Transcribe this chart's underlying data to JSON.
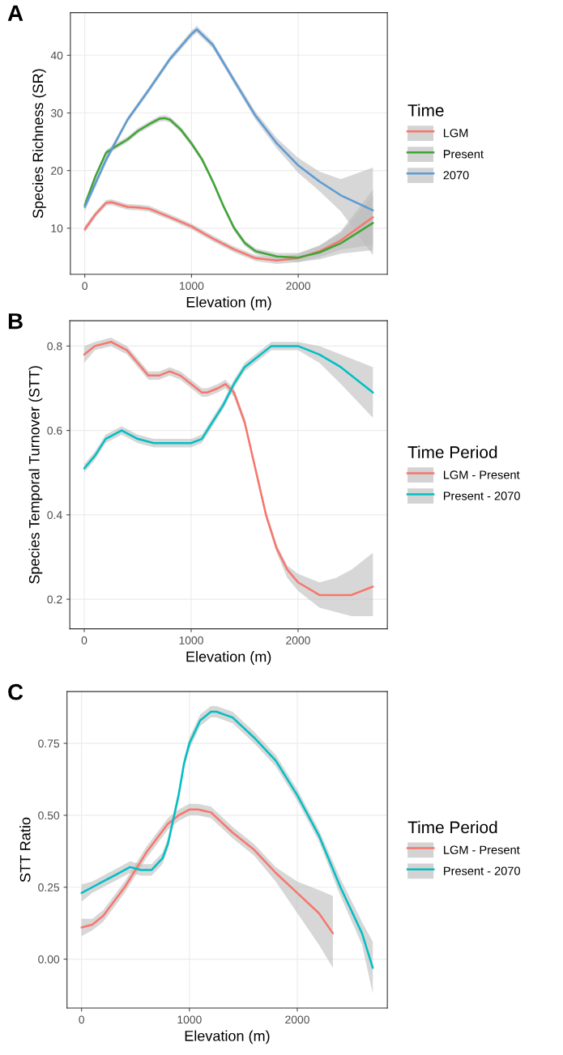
{
  "chart_data": [
    {
      "type": "line",
      "title": "A",
      "xlabel": "Elevation (m)",
      "ylabel": "Species Richness (SR)",
      "legend_title": "Time",
      "legend": "right",
      "grid": true,
      "xlim": [
        -135,
        2835
      ],
      "ylim": [
        2.0,
        47.4
      ],
      "xticks": [
        0,
        1000,
        2000
      ],
      "yticks": [
        10,
        20,
        30,
        40
      ],
      "series": [
        {
          "name": "LGM",
          "color": "#f8766d",
          "x": [
            0,
            100,
            200,
            250,
            400,
            500,
            600,
            800,
            1000,
            1200,
            1400,
            1600,
            1800,
            2000,
            2200,
            2400,
            2700
          ],
          "values": [
            9.8,
            12.4,
            14.4,
            14.5,
            13.7,
            13.6,
            13.4,
            11.9,
            10.3,
            8.2,
            6.3,
            4.8,
            4.4,
            4.8,
            6.0,
            7.9,
            11.9
          ],
          "lower": [
            9.2,
            11.9,
            13.9,
            14.0,
            13.2,
            13.1,
            12.9,
            11.4,
            9.8,
            7.7,
            5.8,
            4.3,
            3.8,
            4.1,
            5.0,
            6.3,
            7.1
          ],
          "upper": [
            10.4,
            12.9,
            14.9,
            15.0,
            14.2,
            14.1,
            13.9,
            12.4,
            10.8,
            8.7,
            6.8,
            5.3,
            5.0,
            5.5,
            7.0,
            9.5,
            16.7
          ]
        },
        {
          "name": "Present",
          "color": "#3fa535",
          "x": [
            0,
            100,
            200,
            300,
            400,
            500,
            600,
            700,
            750,
            800,
            900,
            1000,
            1100,
            1200,
            1300,
            1400,
            1500,
            1600,
            1800,
            2000,
            2200,
            2400,
            2700
          ],
          "values": [
            14.0,
            19.0,
            23.1,
            24.3,
            25.4,
            26.9,
            28.0,
            29.0,
            29.1,
            28.8,
            27.1,
            24.7,
            21.9,
            18.1,
            13.8,
            10.0,
            7.4,
            6.0,
            5.1,
            4.9,
            5.8,
            7.4,
            10.9
          ],
          "lower": [
            13.2,
            18.5,
            22.6,
            23.8,
            24.9,
            26.4,
            27.5,
            28.5,
            28.6,
            28.3,
            26.6,
            24.2,
            21.4,
            17.6,
            13.3,
            9.5,
            6.9,
            5.5,
            4.5,
            4.1,
            4.6,
            5.6,
            6.2
          ],
          "upper": [
            14.8,
            19.5,
            23.6,
            24.8,
            25.9,
            27.4,
            28.5,
            29.5,
            29.6,
            29.3,
            27.6,
            25.2,
            22.4,
            18.6,
            14.3,
            10.5,
            7.9,
            6.5,
            5.7,
            5.7,
            7.0,
            9.2,
            15.6
          ]
        },
        {
          "name": "2070",
          "color": "#5b9bd5",
          "x": [
            0,
            200,
            400,
            600,
            800,
            1000,
            1050,
            1200,
            1400,
            1600,
            1800,
            2000,
            2200,
            2400,
            2700
          ],
          "values": [
            13.7,
            21.9,
            28.8,
            34.0,
            39.4,
            43.7,
            44.5,
            41.8,
            35.6,
            29.5,
            24.7,
            20.9,
            18.1,
            15.7,
            13.1
          ],
          "lower": [
            12.9,
            21.3,
            28.3,
            33.5,
            38.9,
            43.1,
            43.9,
            41.2,
            35.0,
            28.8,
            23.8,
            19.6,
            16.4,
            12.9,
            5.3
          ],
          "upper": [
            14.5,
            22.5,
            29.3,
            34.5,
            39.9,
            44.3,
            45.1,
            42.4,
            36.2,
            30.2,
            25.6,
            22.2,
            19.8,
            18.5,
            20.5
          ]
        }
      ]
    },
    {
      "type": "line",
      "title": "B",
      "xlabel": "Elevation (m)",
      "ylabel": "Species Temporal Turnover (STT)",
      "legend_title": "Time Period",
      "legend": "right",
      "grid": true,
      "xlim": [
        -135,
        2835
      ],
      "ylim": [
        0.13,
        0.86
      ],
      "xticks": [
        0,
        1000,
        2000
      ],
      "yticks": [
        0.2,
        0.4,
        0.6,
        0.8
      ],
      "series": [
        {
          "name": "LGM - Present",
          "color": "#f8766d",
          "x": [
            0,
            100,
            250,
            400,
            500,
            600,
            700,
            800,
            900,
            1000,
            1100,
            1150,
            1250,
            1320,
            1400,
            1500,
            1600,
            1700,
            1800,
            1900,
            2000,
            2200,
            2350,
            2500,
            2700
          ],
          "values": [
            0.78,
            0.8,
            0.81,
            0.79,
            0.76,
            0.73,
            0.73,
            0.74,
            0.73,
            0.71,
            0.69,
            0.69,
            0.7,
            0.71,
            0.69,
            0.62,
            0.51,
            0.4,
            0.32,
            0.27,
            0.24,
            0.21,
            0.21,
            0.21,
            0.23
          ],
          "lower": [
            0.76,
            0.79,
            0.8,
            0.78,
            0.75,
            0.72,
            0.72,
            0.73,
            0.72,
            0.7,
            0.68,
            0.68,
            0.69,
            0.7,
            0.68,
            0.61,
            0.5,
            0.39,
            0.31,
            0.25,
            0.22,
            0.18,
            0.17,
            0.16,
            0.16
          ],
          "upper": [
            0.8,
            0.81,
            0.82,
            0.8,
            0.77,
            0.74,
            0.74,
            0.75,
            0.74,
            0.72,
            0.7,
            0.7,
            0.71,
            0.72,
            0.7,
            0.63,
            0.52,
            0.41,
            0.33,
            0.28,
            0.26,
            0.24,
            0.25,
            0.27,
            0.31
          ]
        },
        {
          "name": "Present - 2070",
          "color": "#00bfc4",
          "x": [
            0,
            100,
            200,
            350,
            500,
            650,
            800,
            1000,
            1100,
            1200,
            1300,
            1400,
            1500,
            1600,
            1750,
            1900,
            2000,
            2200,
            2400,
            2700
          ],
          "values": [
            0.51,
            0.54,
            0.58,
            0.6,
            0.58,
            0.57,
            0.57,
            0.57,
            0.58,
            0.62,
            0.66,
            0.71,
            0.75,
            0.77,
            0.8,
            0.8,
            0.8,
            0.78,
            0.75,
            0.69
          ],
          "lower": [
            0.5,
            0.53,
            0.57,
            0.59,
            0.57,
            0.56,
            0.56,
            0.56,
            0.57,
            0.61,
            0.65,
            0.7,
            0.74,
            0.76,
            0.79,
            0.79,
            0.79,
            0.76,
            0.71,
            0.63
          ],
          "upper": [
            0.52,
            0.55,
            0.59,
            0.61,
            0.59,
            0.58,
            0.58,
            0.58,
            0.59,
            0.63,
            0.67,
            0.72,
            0.76,
            0.78,
            0.81,
            0.81,
            0.81,
            0.8,
            0.78,
            0.75
          ]
        }
      ]
    },
    {
      "type": "line",
      "title": "C",
      "xlabel": "Elevation (m)",
      "ylabel": "STT Ratio",
      "legend_title": "Time Period",
      "legend": "right",
      "grid": true,
      "xlim": [
        -135,
        2835
      ],
      "ylim": [
        -0.17,
        0.93
      ],
      "xticks": [
        0,
        1000,
        2000
      ],
      "yticks": [
        {
          "value": 0,
          "label": "0.00"
        },
        {
          "value": 0.25,
          "label": "0.25"
        },
        {
          "value": 0.5,
          "label": "0.50"
        },
        {
          "value": 0.75,
          "label": "0.75"
        }
      ],
      "series": [
        {
          "name": "LGM - Present",
          "color": "#f8766d",
          "x": [
            0,
            100,
            200,
            300,
            400,
            500,
            600,
            700,
            800,
            900,
            1000,
            1080,
            1200,
            1400,
            1600,
            1800,
            2000,
            2200,
            2330
          ],
          "values": [
            0.11,
            0.12,
            0.15,
            0.2,
            0.25,
            0.31,
            0.37,
            0.42,
            0.47,
            0.5,
            0.52,
            0.52,
            0.51,
            0.44,
            0.38,
            0.3,
            0.23,
            0.16,
            0.09
          ],
          "lower": [
            0.08,
            0.1,
            0.13,
            0.18,
            0.23,
            0.29,
            0.35,
            0.4,
            0.45,
            0.48,
            0.5,
            0.5,
            0.49,
            0.42,
            0.36,
            0.27,
            0.16,
            0.05,
            -0.03
          ],
          "upper": [
            0.14,
            0.14,
            0.17,
            0.22,
            0.27,
            0.33,
            0.39,
            0.44,
            0.49,
            0.52,
            0.54,
            0.54,
            0.53,
            0.46,
            0.4,
            0.32,
            0.27,
            0.24,
            0.22
          ]
        },
        {
          "name": "Present - 2070",
          "color": "#00bfc4",
          "x": [
            0,
            100,
            200,
            300,
            450,
            550,
            650,
            750,
            800,
            900,
            950,
            1000,
            1100,
            1200,
            1250,
            1400,
            1600,
            1800,
            2000,
            2200,
            2400,
            2600,
            2700
          ],
          "values": [
            0.23,
            0.25,
            0.27,
            0.29,
            0.32,
            0.31,
            0.31,
            0.35,
            0.4,
            0.57,
            0.68,
            0.75,
            0.83,
            0.86,
            0.86,
            0.84,
            0.77,
            0.69,
            0.57,
            0.43,
            0.25,
            0.09,
            -0.03
          ],
          "lower": [
            0.2,
            0.23,
            0.25,
            0.27,
            0.3,
            0.29,
            0.29,
            0.33,
            0.38,
            0.55,
            0.66,
            0.73,
            0.81,
            0.84,
            0.84,
            0.82,
            0.75,
            0.67,
            0.55,
            0.41,
            0.22,
            0.05,
            -0.12
          ],
          "upper": [
            0.26,
            0.27,
            0.29,
            0.31,
            0.34,
            0.33,
            0.33,
            0.37,
            0.42,
            0.59,
            0.7,
            0.77,
            0.85,
            0.88,
            0.88,
            0.86,
            0.79,
            0.71,
            0.59,
            0.45,
            0.28,
            0.13,
            0.06
          ]
        }
      ]
    }
  ]
}
